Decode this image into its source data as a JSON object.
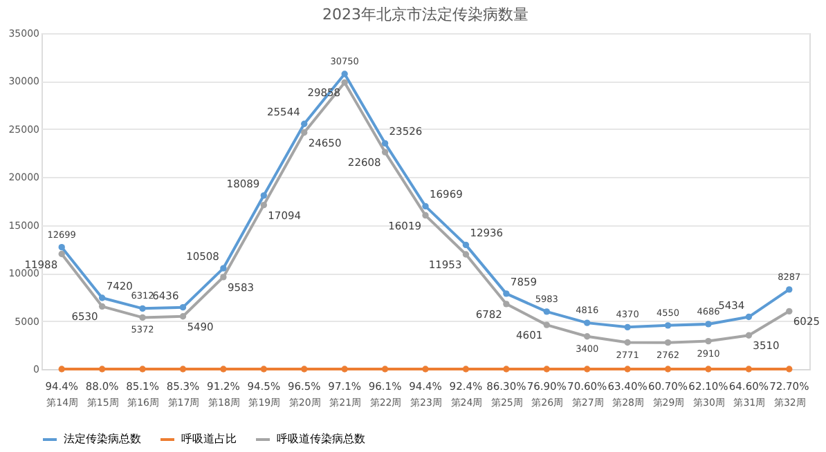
{
  "chart_data": {
    "type": "line",
    "title": "2023年北京市法定传染病数量",
    "categories": [
      "第14周",
      "第15周",
      "第16周",
      "第17周",
      "第18周",
      "第19周",
      "第20周",
      "第21周",
      "第22周",
      "第23周",
      "第24周",
      "第25周",
      "第26周",
      "第27周",
      "第28周",
      "第29周",
      "第30周",
      "第31周",
      "第32周"
    ],
    "series": [
      {
        "name": "法定传染病总数",
        "color": "#5b9bd5",
        "values": [
          12699,
          7420,
          6312,
          6436,
          10508,
          18089,
          25544,
          30750,
          23526,
          16969,
          12936,
          7859,
          5983,
          4816,
          4370,
          4550,
          4686,
          5434,
          8287
        ],
        "value_labels": [
          "12699",
          "7420",
          "6312",
          "6436",
          "10508",
          "18089",
          "25544",
          "30750",
          "23526",
          "16969",
          "12936",
          "7859",
          "5983",
          "4816",
          "4370",
          "4550",
          "4686",
          "5434",
          "8287"
        ]
      },
      {
        "name": "呼吸道占比",
        "color": "#ed7d31",
        "values": [
          0.944,
          0.88,
          0.851,
          0.853,
          0.912,
          0.945,
          0.965,
          0.971,
          0.961,
          0.944,
          0.924,
          0.863,
          0.769,
          0.706,
          0.634,
          0.607,
          0.621,
          0.646,
          0.727
        ],
        "value_labels": [
          "94.4%",
          "88.0%",
          "85.1%",
          "85.3%",
          "91.2%",
          "94.5%",
          "96.5%",
          "97.1%",
          "96.1%",
          "94.4%",
          "92.4%",
          "86.30%",
          "76.90%",
          "70.60%",
          "63.40%",
          "60.70%",
          "62.10%",
          "64.60%",
          "72.70%"
        ]
      },
      {
        "name": "呼吸道传染病总数",
        "color": "#a5a5a5",
        "values": [
          11988,
          6530,
          5372,
          5490,
          9583,
          17094,
          24650,
          29858,
          22608,
          16019,
          11953,
          6782,
          4601,
          3400,
          2771,
          2762,
          2910,
          3510,
          6025
        ],
        "value_labels": [
          "11988",
          "6530",
          "5372",
          "5490",
          "9583",
          "17094",
          "24650",
          "29858",
          "22608",
          "16019",
          "11953",
          "6782",
          "4601",
          "3400",
          "2771",
          "2762",
          "2910",
          "3510",
          "6025"
        ]
      }
    ],
    "ylim": [
      0,
      35000
    ],
    "yticks": [
      0,
      5000,
      10000,
      15000,
      20000,
      25000,
      30000,
      35000
    ],
    "grid": "y",
    "legend": "bottom",
    "marker": "circle",
    "line_style": "solid"
  }
}
